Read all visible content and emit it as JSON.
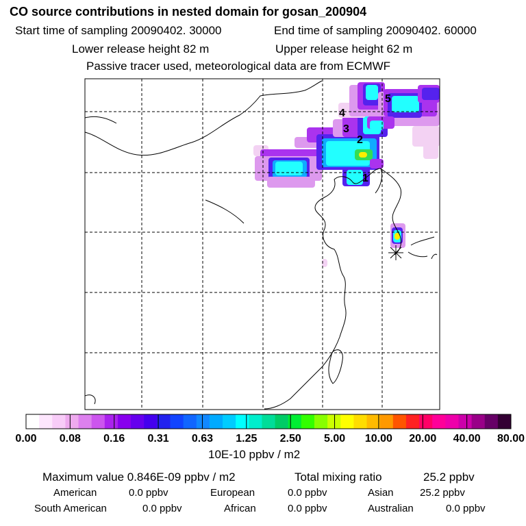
{
  "header": {
    "title": "CO  source contributions in nested domain for gosan_200904",
    "start_label": "Start time of sampling 20090402. 30000",
    "end_label": "End time of sampling 20090402. 60000",
    "lower_label": "Lower release height   82 m",
    "upper_label": "Upper release height   62 m",
    "note": "Passive tracer used, meteorological data are from ECMWF"
  },
  "chart_data": {
    "type": "heatmap",
    "title": "CO  source contributions in nested domain for gosan_200904",
    "trajectory_labels": [
      "1",
      "2",
      "3",
      "4",
      "5"
    ],
    "colorbar": {
      "tick_labels": [
        "0.00",
        "0.08",
        "0.16",
        "0.31",
        "0.63",
        "1.25",
        "2.50",
        "5.00",
        "10.00",
        "20.00",
        "40.00",
        "80.00"
      ],
      "units": "10E-10 ppbv / m2",
      "colors": [
        "#ffffff",
        "#fde6fd",
        "#f8ccf8",
        "#eeaaee",
        "#dd80ee",
        "#cc55ee",
        "#aa22ee",
        "#8800ee",
        "#6600ee",
        "#4400ee",
        "#2222ee",
        "#1144ff",
        "#1166ff",
        "#1188ff",
        "#00aaff",
        "#00ccff",
        "#00ffff",
        "#00eecc",
        "#00dd99",
        "#00cc66",
        "#00ee33",
        "#33ff00",
        "#88ff00",
        "#ccff00",
        "#ffff00",
        "#ffdd00",
        "#ffbb00",
        "#ff9900",
        "#ff5500",
        "#ff2222",
        "#ff0066",
        "#ff0099",
        "#ee00aa",
        "#cc00aa",
        "#990088",
        "#660066",
        "#330033"
      ]
    }
  },
  "stats": {
    "max_label": "Maximum value  0.846E-09 ppbv / m2",
    "total_label": "Total mixing ratio",
    "total_value": "25.2 ppbv",
    "regions": [
      {
        "name": "American",
        "value": "0.0 ppbv"
      },
      {
        "name": "European",
        "value": "0.0 ppbv"
      },
      {
        "name": "Asian",
        "value": "25.2 ppbv"
      },
      {
        "name": "South American",
        "value": "0.0 ppbv"
      },
      {
        "name": "African",
        "value": "0.0 ppbv"
      },
      {
        "name": "Australian",
        "value": "0.0 ppbv"
      }
    ]
  }
}
